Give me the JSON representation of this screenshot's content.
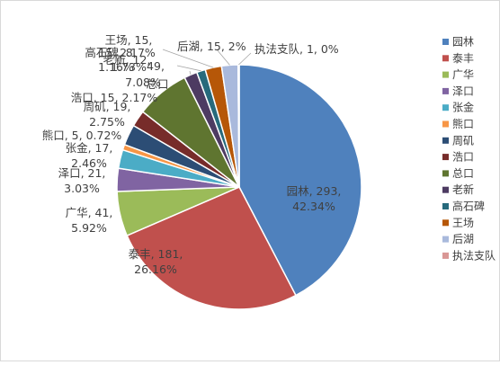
{
  "chart_data": {
    "type": "pie",
    "title": "",
    "legend_position": "right",
    "slices": [
      {
        "name": "园林",
        "value": 293,
        "percent": "42.34%",
        "color": "#4f81bd",
        "label": "园林, 293, 42.34%"
      },
      {
        "name": "泰丰",
        "value": 181,
        "percent": "26.16%",
        "color": "#c0504d",
        "label": "泰丰, 181, 26.16%"
      },
      {
        "name": "广华",
        "value": 41,
        "percent": "5.92%",
        "color": "#9bbb59",
        "label": "广华, 41, 5.92%"
      },
      {
        "name": "泽口",
        "value": 21,
        "percent": "3.03%",
        "color": "#8064a2",
        "label": "泽口, 21, 3.03%"
      },
      {
        "name": "张金",
        "value": 17,
        "percent": "2.46%",
        "color": "#4bacc6",
        "label": "张金, 17, 2.46%"
      },
      {
        "name": "熊口",
        "value": 5,
        "percent": "0.72%",
        "color": "#f79646",
        "label": "熊口, 5, 0.72%"
      },
      {
        "name": "周矶",
        "value": 19,
        "percent": "2.75%",
        "color": "#2c4d75",
        "label": "周矶, 19, 2.75%"
      },
      {
        "name": "浩口",
        "value": 15,
        "percent": "2.17%",
        "color": "#772c2a",
        "label": "浩口, 15, 2.17%"
      },
      {
        "name": "总口",
        "value": 49,
        "percent": "7.08%",
        "color": "#5f7530",
        "label": "总口, 49, 7.08%"
      },
      {
        "name": "老新",
        "value": 12,
        "percent": "1.73%",
        "color": "#4d3b62",
        "label": "老新, 12, 1.73%"
      },
      {
        "name": "高石碑",
        "value": 8,
        "percent": "1.16%",
        "color": "#276a7c",
        "label": "高石碑, 8, 1.16%"
      },
      {
        "name": "王场",
        "value": 15,
        "percent": "2.17%",
        "color": "#b65708",
        "label": "王场, 15, 2.17%"
      },
      {
        "name": "后湖",
        "value": 15,
        "percent": "2%",
        "color": "#a9b9dc",
        "label": "后湖, 15, 2%"
      },
      {
        "name": "执法支队",
        "value": 1,
        "percent": "0%",
        "color": "#d99795",
        "label": "执法支队, 1, 0%"
      }
    ]
  }
}
